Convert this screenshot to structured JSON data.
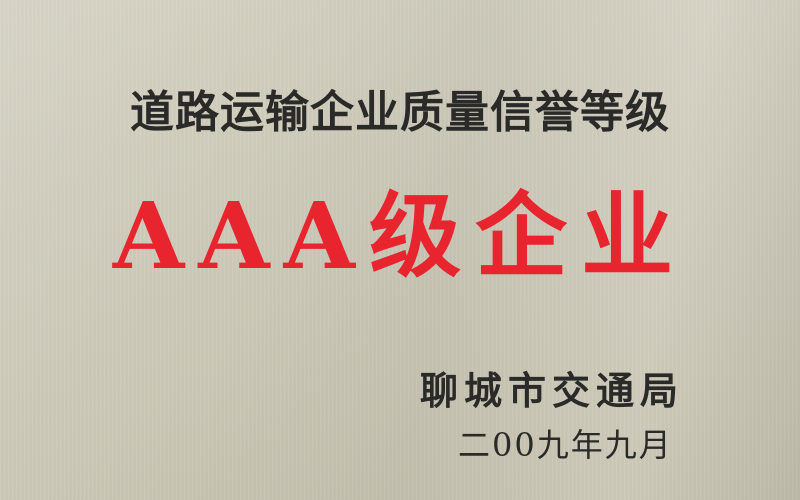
{
  "plaque": {
    "title": "道路运输企业质量信誉等级",
    "rating": "AAA级企业",
    "issuer": "聊城市交通局",
    "date": "二00九年九月",
    "colors": {
      "background": "#cdcab9",
      "text": "#2a2a28",
      "rating_text": "#e8242f"
    }
  }
}
